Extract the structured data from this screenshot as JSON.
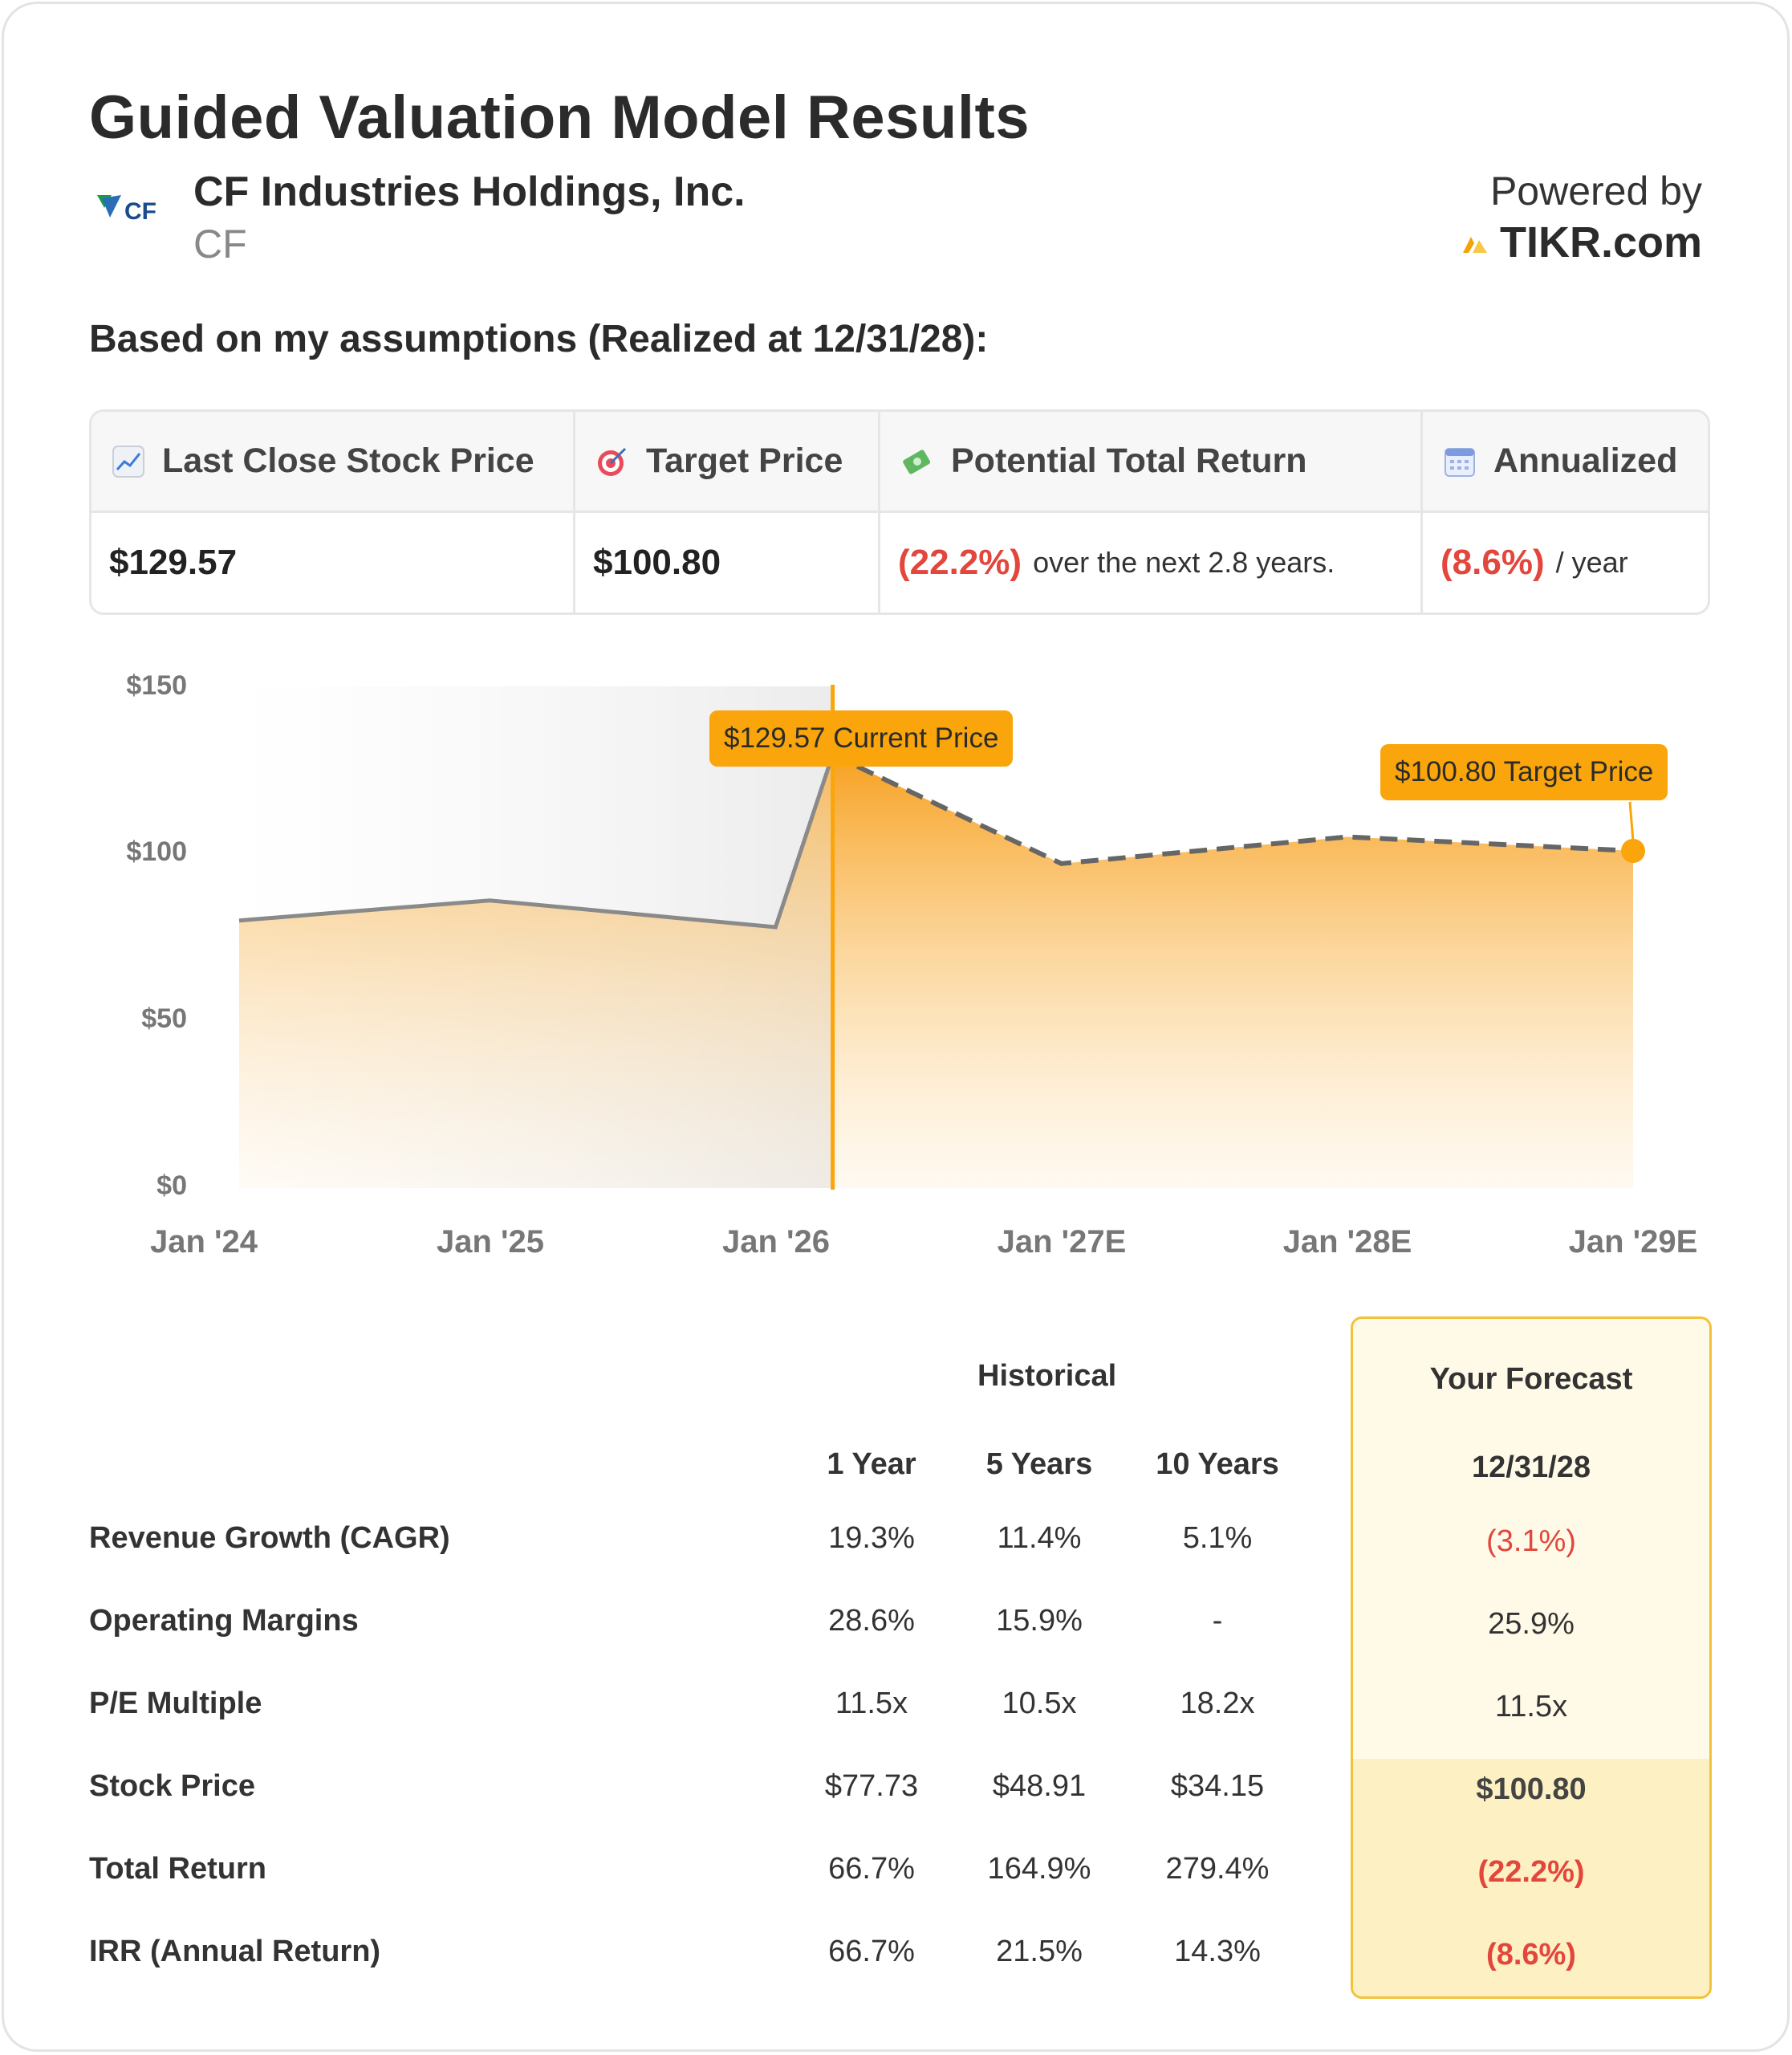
{
  "title": "Guided Valuation Model Results",
  "company": {
    "name": "CF Industries Holdings, Inc.",
    "ticker": "CF",
    "logo_text": "CF"
  },
  "powered": {
    "label": "Powered by",
    "brand": "TIKR.com"
  },
  "assumptions_text": "Based on my assumptions (Realized at 12/31/28):",
  "metrics": {
    "last_close": {
      "label": "Last Close Stock Price",
      "value": "$129.57",
      "icon": "chart-up-icon"
    },
    "target": {
      "label": "Target Price",
      "value": "$100.80",
      "icon": "target-icon"
    },
    "total_return": {
      "label": "Potential Total Return",
      "value": "(22.2%)",
      "suffix": "over the next 2.8 years.",
      "icon": "money-icon"
    },
    "annualized": {
      "label": "Annualized",
      "value": "(8.6%)",
      "suffix": "/ year",
      "icon": "calendar-icon"
    }
  },
  "colors": {
    "accent": "#f9a50b",
    "negative": "#e2463c",
    "historical_line": "#8a8a8a",
    "forecast_line": "#666666"
  },
  "chart_data": {
    "type": "area",
    "y_ticks": [
      "$150",
      "$100",
      "$50",
      "$0"
    ],
    "ylim": [
      0,
      150
    ],
    "x_ticks": [
      "Jan '24",
      "Jan '25",
      "Jan '26",
      "Jan '27E",
      "Jan '28E",
      "Jan '29E"
    ],
    "historical": {
      "x": [
        2024.13,
        2025.13,
        2026.13,
        2026.33
      ],
      "y": [
        80,
        86,
        78,
        129.57
      ]
    },
    "forecast": {
      "x": [
        2026.33,
        2027.13,
        2028.13,
        2029.13
      ],
      "y": [
        129.57,
        97,
        105,
        100.8
      ]
    },
    "current_marker_x": 2026.33,
    "current_label": "$129.57 Current Price",
    "target_label": "$100.80 Target Price"
  },
  "table": {
    "historical_header": "Historical",
    "forecast_header": "Your Forecast",
    "columns": [
      "1 Year",
      "5 Years",
      "10 Years"
    ],
    "forecast_date": "12/31/28",
    "rows": [
      {
        "label": "Revenue Growth (CAGR)",
        "values": [
          "19.3%",
          "11.4%",
          "5.1%"
        ],
        "forecast": "(3.1%)"
      },
      {
        "label": "Operating Margins",
        "values": [
          "28.6%",
          "15.9%",
          "-"
        ],
        "forecast": "25.9%"
      },
      {
        "label": "P/E Multiple",
        "values": [
          "11.5x",
          "10.5x",
          "18.2x"
        ],
        "forecast": "11.5x"
      },
      {
        "label": "Stock Price",
        "values": [
          "$77.73",
          "$48.91",
          "$34.15"
        ],
        "forecast": "$100.80"
      },
      {
        "label": "Total Return",
        "values": [
          "66.7%",
          "164.9%",
          "279.4%"
        ],
        "forecast": "(22.2%)"
      },
      {
        "label": "IRR (Annual Return)",
        "values": [
          "66.7%",
          "21.5%",
          "14.3%"
        ],
        "forecast": "(8.6%)"
      }
    ]
  }
}
